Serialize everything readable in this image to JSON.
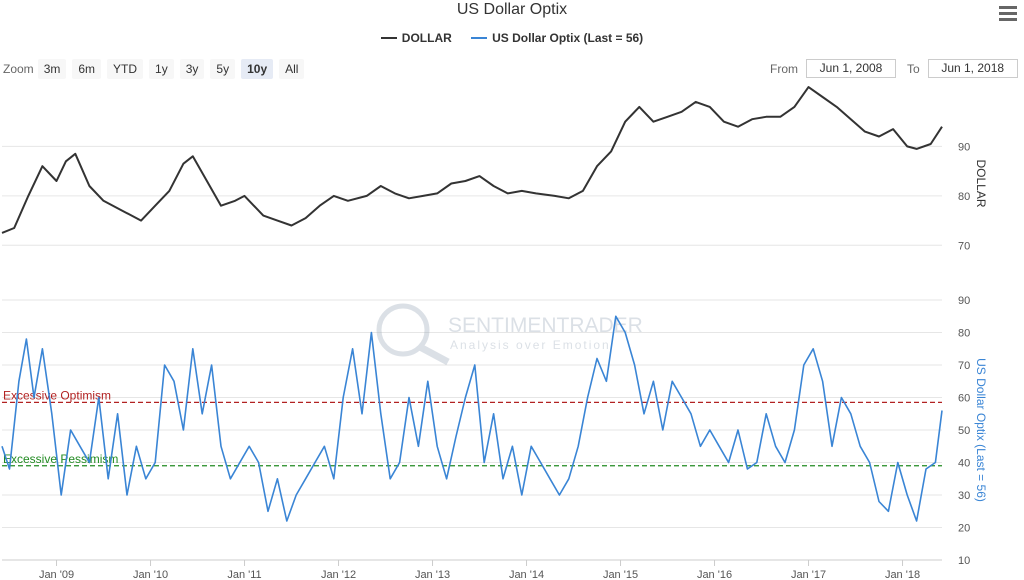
{
  "header": {
    "title": "US Dollar Optix"
  },
  "legend": {
    "items": [
      {
        "label": "DOLLAR",
        "color": "#333333"
      },
      {
        "label": "US Dollar Optix (Last = 56)",
        "color": "#3a85d5"
      }
    ]
  },
  "zoom": {
    "label": "Zoom",
    "buttons": [
      "3m",
      "6m",
      "YTD",
      "1y",
      "3y",
      "5y",
      "10y",
      "All"
    ],
    "active": "10y"
  },
  "range": {
    "from_label": "From",
    "from_value": "Jun 1, 2008",
    "to_label": "To",
    "to_value": "Jun 1, 2018"
  },
  "watermark": {
    "name": "SENTIMENTRADER",
    "tagline": "Analysis over Emotion"
  },
  "chart_data": {
    "type": "line",
    "x_ticks": [
      "Jan '09",
      "Jan '10",
      "Jan '11",
      "Jan '12",
      "Jan '13",
      "Jan '14",
      "Jan '15",
      "Jan '16",
      "Jan '17",
      "Jan '18"
    ],
    "x_range": [
      2008.42,
      2018.42
    ],
    "panels": [
      {
        "name": "DOLLAR",
        "ylabel": "DOLLAR",
        "yticks": [
          70,
          80,
          90
        ],
        "ylim": [
          65,
          100
        ],
        "series": {
          "name": "DOLLAR",
          "color": "#333333",
          "x": [
            2008.42,
            2008.55,
            2008.7,
            2008.85,
            2009.0,
            2009.1,
            2009.2,
            2009.35,
            2009.5,
            2009.7,
            2009.9,
            2010.05,
            2010.2,
            2010.35,
            2010.45,
            2010.6,
            2010.75,
            2010.9,
            2011.0,
            2011.2,
            2011.35,
            2011.5,
            2011.65,
            2011.8,
            2011.95,
            2012.1,
            2012.3,
            2012.45,
            2012.6,
            2012.75,
            2012.9,
            2013.05,
            2013.2,
            2013.35,
            2013.5,
            2013.65,
            2013.8,
            2013.95,
            2014.1,
            2014.3,
            2014.45,
            2014.6,
            2014.75,
            2014.9,
            2015.05,
            2015.2,
            2015.35,
            2015.5,
            2015.65,
            2015.8,
            2015.95,
            2016.1,
            2016.25,
            2016.4,
            2016.55,
            2016.7,
            2016.85,
            2017.0,
            2017.15,
            2017.3,
            2017.45,
            2017.6,
            2017.75,
            2017.9,
            2018.05,
            2018.15,
            2018.3,
            2018.42
          ],
          "values": [
            72.5,
            73.5,
            80,
            86,
            83,
            87,
            88.5,
            82,
            79,
            77,
            75,
            78,
            81,
            86.5,
            88,
            83,
            78,
            79,
            80,
            76,
            75,
            74,
            75.5,
            78,
            80,
            79,
            80,
            82,
            80.5,
            79.5,
            80,
            80.5,
            82.5,
            83,
            84,
            82,
            80.5,
            81,
            80.5,
            80,
            79.5,
            81,
            86,
            89,
            95,
            98,
            95,
            96,
            97,
            99,
            98,
            95,
            94,
            95.5,
            96,
            96,
            98,
            102,
            100,
            98,
            95.5,
            93,
            92,
            93.5,
            90,
            89.5,
            90.5,
            94
          ]
        }
      },
      {
        "name": "US Dollar Optix",
        "ylabel": "US Dollar Optix (Last = 56)",
        "yticks": [
          10,
          20,
          30,
          40,
          50,
          60,
          70,
          80,
          90
        ],
        "ylim": [
          10,
          90
        ],
        "series": {
          "name": "US Dollar Optix",
          "color": "#3a85d5",
          "x": [
            2008.42,
            2008.5,
            2008.6,
            2008.68,
            2008.76,
            2008.85,
            2008.95,
            2009.05,
            2009.15,
            2009.25,
            2009.35,
            2009.45,
            2009.55,
            2009.65,
            2009.75,
            2009.85,
            2009.95,
            2010.05,
            2010.15,
            2010.25,
            2010.35,
            2010.45,
            2010.55,
            2010.65,
            2010.75,
            2010.85,
            2010.95,
            2011.05,
            2011.15,
            2011.25,
            2011.35,
            2011.45,
            2011.55,
            2011.65,
            2011.75,
            2011.85,
            2011.95,
            2012.05,
            2012.15,
            2012.25,
            2012.35,
            2012.45,
            2012.55,
            2012.65,
            2012.75,
            2012.85,
            2012.95,
            2013.05,
            2013.15,
            2013.25,
            2013.35,
            2013.45,
            2013.55,
            2013.65,
            2013.75,
            2013.85,
            2013.95,
            2014.05,
            2014.15,
            2014.25,
            2014.35,
            2014.45,
            2014.55,
            2014.65,
            2014.75,
            2014.85,
            2014.95,
            2015.05,
            2015.15,
            2015.25,
            2015.35,
            2015.45,
            2015.55,
            2015.65,
            2015.75,
            2015.85,
            2015.95,
            2016.05,
            2016.15,
            2016.25,
            2016.35,
            2016.45,
            2016.55,
            2016.65,
            2016.75,
            2016.85,
            2016.95,
            2017.05,
            2017.15,
            2017.25,
            2017.35,
            2017.45,
            2017.55,
            2017.65,
            2017.75,
            2017.85,
            2017.95,
            2018.05,
            2018.15,
            2018.25,
            2018.35,
            2018.42
          ],
          "values": [
            45,
            38,
            65,
            78,
            60,
            75,
            55,
            30,
            50,
            45,
            40,
            60,
            35,
            55,
            30,
            45,
            35,
            40,
            70,
            65,
            50,
            75,
            55,
            70,
            45,
            35,
            40,
            45,
            40,
            25,
            35,
            22,
            30,
            35,
            40,
            45,
            35,
            60,
            75,
            55,
            80,
            55,
            35,
            40,
            60,
            45,
            65,
            45,
            35,
            48,
            60,
            70,
            40,
            55,
            35,
            45,
            30,
            45,
            40,
            35,
            30,
            35,
            45,
            60,
            72,
            65,
            85,
            80,
            70,
            55,
            65,
            50,
            65,
            60,
            55,
            45,
            50,
            45,
            40,
            50,
            38,
            40,
            55,
            45,
            40,
            50,
            70,
            75,
            65,
            45,
            60,
            55,
            45,
            40,
            28,
            25,
            40,
            30,
            22,
            38,
            40,
            56
          ]
        },
        "reference_lines": [
          {
            "label": "Excessive Optimism",
            "value": 58.5,
            "color": "#b22222"
          },
          {
            "label": "Excessive Pessimism",
            "value": 39,
            "color": "#228b22"
          }
        ]
      }
    ],
    "grid": true
  }
}
